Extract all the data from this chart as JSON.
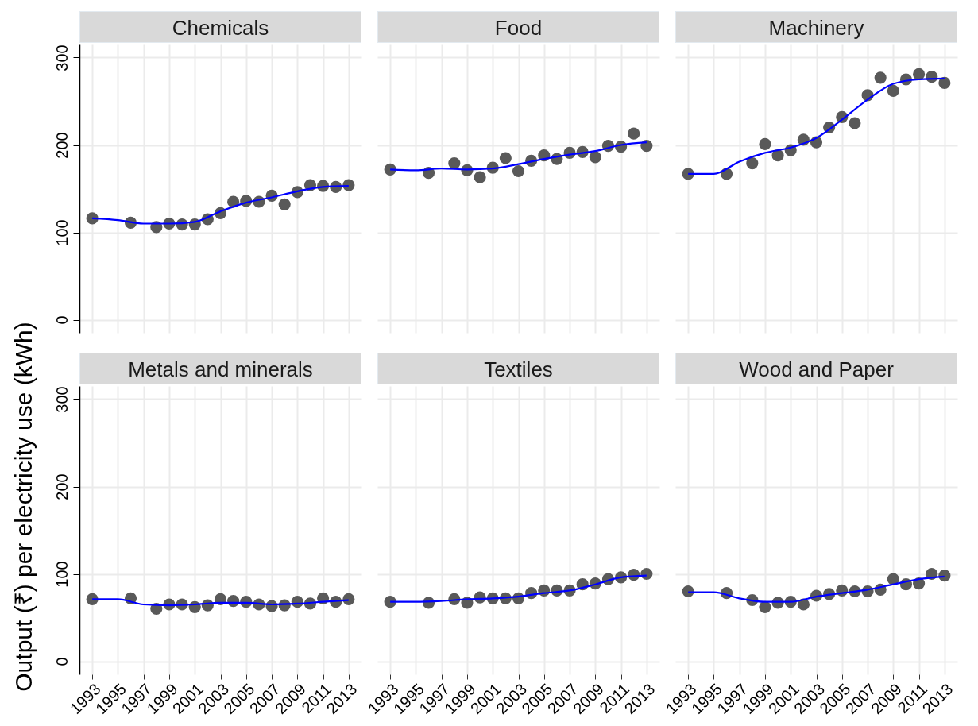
{
  "chart_data": [
    {
      "type": "scatter",
      "title": "Chemicals",
      "ylabel": "Output (₹) per electricity use (kWh)",
      "xlim": [
        1992,
        2014
      ],
      "xticks": [
        1993,
        1995,
        1997,
        1999,
        2001,
        2003,
        2005,
        2007,
        2009,
        2011,
        2013
      ],
      "ylim": [
        -15,
        315
      ],
      "yticks": [
        0,
        100,
        200,
        300
      ],
      "grid": true,
      "tick_labels": "y",
      "series": [
        {
          "type": "scatter",
          "marker": "circle",
          "color": "#595959",
          "x": [
            1993,
            1996,
            1998,
            1999,
            2000,
            2001,
            2002,
            2003,
            2004,
            2005,
            2006,
            2007,
            2008,
            2009,
            2010,
            2011,
            2012,
            2013
          ],
          "values": [
            116,
            111,
            106,
            110,
            109,
            109,
            115,
            122,
            135,
            136,
            135,
            142,
            132,
            146,
            154,
            153,
            152,
            154
          ]
        },
        {
          "type": "line",
          "color": "#0000ff",
          "x": [
            1993,
            1995,
            1997,
            1999,
            2001,
            2003,
            2005,
            2007,
            2009,
            2011,
            2013
          ],
          "values": [
            116,
            114,
            110,
            110,
            112,
            124,
            134,
            140,
            147,
            152,
            153
          ]
        }
      ]
    },
    {
      "type": "scatter",
      "title": "Food",
      "xlim": [
        1992,
        2014
      ],
      "xticks": [
        1993,
        1995,
        1997,
        1999,
        2001,
        2003,
        2005,
        2007,
        2009,
        2011,
        2013
      ],
      "ylim": [
        -15,
        315
      ],
      "yticks": [
        0,
        100,
        200,
        300
      ],
      "grid": true,
      "tick_labels": false,
      "series": [
        {
          "type": "scatter",
          "marker": "circle",
          "color": "#595959",
          "x": [
            1993,
            1996,
            1998,
            1999,
            2000,
            2001,
            2002,
            2003,
            2004,
            2005,
            2006,
            2007,
            2008,
            2009,
            2010,
            2011,
            2012,
            2013
          ],
          "values": [
            172,
            168,
            179,
            171,
            163,
            174,
            185,
            170,
            182,
            188,
            184,
            191,
            192,
            186,
            199,
            198,
            213,
            199
          ]
        },
        {
          "type": "line",
          "color": "#0000ff",
          "x": [
            1993,
            1995,
            1997,
            1999,
            2001,
            2003,
            2005,
            2007,
            2009,
            2011,
            2013
          ],
          "values": [
            172,
            171,
            173,
            172,
            173,
            178,
            184,
            189,
            193,
            200,
            203
          ]
        }
      ]
    },
    {
      "type": "scatter",
      "title": "Machinery",
      "xlim": [
        1992,
        2014
      ],
      "xticks": [
        1993,
        1995,
        1997,
        1999,
        2001,
        2003,
        2005,
        2007,
        2009,
        2011,
        2013
      ],
      "ylim": [
        -15,
        315
      ],
      "yticks": [
        0,
        100,
        200,
        300
      ],
      "grid": true,
      "tick_labels": false,
      "series": [
        {
          "type": "scatter",
          "marker": "circle",
          "color": "#595959",
          "x": [
            1993,
            1996,
            1998,
            1999,
            2000,
            2001,
            2002,
            2003,
            2004,
            2005,
            2006,
            2007,
            2008,
            2009,
            2010,
            2011,
            2012,
            2013
          ],
          "values": [
            167,
            167,
            179,
            201,
            188,
            194,
            206,
            203,
            220,
            232,
            225,
            257,
            277,
            262,
            275,
            281,
            278,
            271
          ]
        },
        {
          "type": "line",
          "color": "#0000ff",
          "x": [
            1993,
            1995,
            1997,
            1999,
            2001,
            2003,
            2005,
            2007,
            2009,
            2011,
            2013
          ],
          "values": [
            167,
            167,
            181,
            191,
            197,
            208,
            229,
            252,
            270,
            275,
            276
          ]
        }
      ]
    },
    {
      "type": "scatter",
      "title": "Metals and minerals",
      "xlim": [
        1992,
        2014
      ],
      "xticks": [
        1993,
        1995,
        1997,
        1999,
        2001,
        2003,
        2005,
        2007,
        2009,
        2011,
        2013
      ],
      "ylim": [
        -15,
        315
      ],
      "yticks": [
        0,
        100,
        200,
        300
      ],
      "grid": true,
      "series": [
        {
          "type": "scatter",
          "marker": "circle",
          "color": "#595959",
          "x": [
            1993,
            1996,
            1998,
            1999,
            2000,
            2001,
            2002,
            2003,
            2004,
            2005,
            2006,
            2007,
            2008,
            2009,
            2010,
            2011,
            2012,
            2013
          ],
          "values": [
            71,
            72,
            60,
            65,
            65,
            62,
            64,
            71,
            69,
            68,
            65,
            63,
            64,
            68,
            66,
            72,
            68,
            71
          ]
        },
        {
          "type": "line",
          "color": "#0000ff",
          "x": [
            1993,
            1995,
            1997,
            1999,
            2001,
            2003,
            2005,
            2007,
            2009,
            2011,
            2013
          ],
          "values": [
            71,
            71,
            65,
            64,
            65,
            67,
            67,
            65,
            66,
            68,
            70
          ]
        }
      ]
    },
    {
      "type": "scatter",
      "title": "Textiles",
      "xlim": [
        1992,
        2014
      ],
      "xticks": [
        1993,
        1995,
        1997,
        1999,
        2001,
        2003,
        2005,
        2007,
        2009,
        2011,
        2013
      ],
      "ylim": [
        -15,
        315
      ],
      "yticks": [
        0,
        100,
        200,
        300
      ],
      "grid": true,
      "tick_labels": "x",
      "series": [
        {
          "type": "scatter",
          "marker": "circle",
          "color": "#595959",
          "x": [
            1993,
            1996,
            1998,
            1999,
            2000,
            2001,
            2002,
            2003,
            2004,
            2005,
            2006,
            2007,
            2008,
            2009,
            2010,
            2011,
            2012,
            2013
          ],
          "values": [
            68,
            67,
            71,
            67,
            73,
            72,
            72,
            72,
            78,
            81,
            81,
            81,
            88,
            89,
            94,
            96,
            99,
            100
          ]
        },
        {
          "type": "line",
          "color": "#0000ff",
          "x": [
            1993,
            1995,
            1997,
            1999,
            2001,
            2003,
            2005,
            2007,
            2009,
            2011,
            2013
          ],
          "values": [
            68,
            68,
            69,
            71,
            72,
            74,
            78,
            81,
            88,
            96,
            98
          ]
        }
      ]
    },
    {
      "type": "scatter",
      "title": "Wood and Paper",
      "xlim": [
        1992,
        2014
      ],
      "xticks": [
        1993,
        1995,
        1997,
        1999,
        2001,
        2003,
        2005,
        2007,
        2009,
        2011,
        2013
      ],
      "ylim": [
        -15,
        315
      ],
      "yticks": [
        0,
        100,
        200,
        300
      ],
      "grid": true,
      "tick_labels": "x",
      "series": [
        {
          "type": "scatter",
          "marker": "circle",
          "color": "#595959",
          "x": [
            1993,
            1996,
            1998,
            1999,
            2000,
            2001,
            2002,
            2003,
            2004,
            2005,
            2006,
            2007,
            2008,
            2009,
            2010,
            2011,
            2012,
            2013
          ],
          "values": [
            80,
            78,
            70,
            62,
            67,
            68,
            65,
            75,
            77,
            81,
            80,
            80,
            82,
            94,
            88,
            89,
            100,
            98
          ]
        },
        {
          "type": "line",
          "color": "#0000ff",
          "x": [
            1993,
            1995,
            1997,
            1999,
            2001,
            2003,
            2005,
            2007,
            2009,
            2011,
            2013
          ],
          "values": [
            79,
            79,
            72,
            68,
            68,
            74,
            78,
            82,
            88,
            94,
            97
          ]
        }
      ]
    }
  ]
}
